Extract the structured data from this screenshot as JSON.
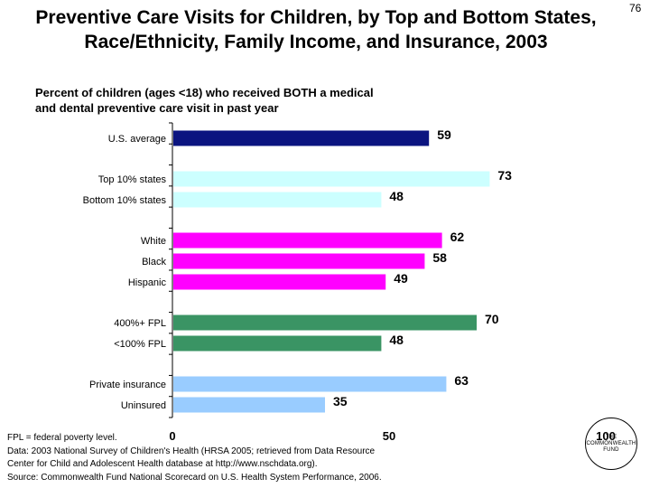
{
  "title_line1": "Preventive Care Visits for Children, by Top and Bottom States,",
  "title_line2": "Race/Ethnicity, Family Income, and Insurance, 2003",
  "slide_number": "76",
  "subtitle_line1": "Percent of children (ages <18) who received BOTH a medical",
  "subtitle_line2": "and dental preventive care visit in past year",
  "chart_data": {
    "type": "bar",
    "orientation": "horizontal",
    "categories": [
      "U.S. average",
      "Top 10% states",
      "Bottom 10% states",
      "White",
      "Black",
      "Hispanic",
      "400%+ FPL",
      "<100% FPL",
      "Private insurance",
      "Uninsured"
    ],
    "values": [
      59,
      73,
      48,
      62,
      58,
      49,
      70,
      48,
      63,
      35
    ],
    "colors": [
      "#0b1480",
      "#ccffff",
      "#ccffff",
      "#ff00ff",
      "#ff00ff",
      "#ff00ff",
      "#3a9464",
      "#3a9464",
      "#99ccff",
      "#99ccff"
    ],
    "groups": [
      [
        0
      ],
      [
        1,
        2
      ],
      [
        3,
        4,
        5
      ],
      [
        6,
        7
      ],
      [
        8,
        9
      ]
    ],
    "xlim": [
      0,
      100
    ],
    "xticks": [
      0,
      50,
      100
    ],
    "xlabel": "",
    "ylabel": ""
  },
  "notes": {
    "line1": "FPL = federal poverty level.",
    "line2": "Data: 2003 National Survey of Children's Health (HRSA 2005; retrieved from Data Resource",
    "line3": "Center for Child and Adolescent Health database at http://www.nschdata.org).",
    "line4": "Source: Commonwealth Fund National Scorecard on U.S. Health System Performance, 2006."
  },
  "logo": {
    "text": "THE\nCOMMONWEALTH\nFUND"
  }
}
